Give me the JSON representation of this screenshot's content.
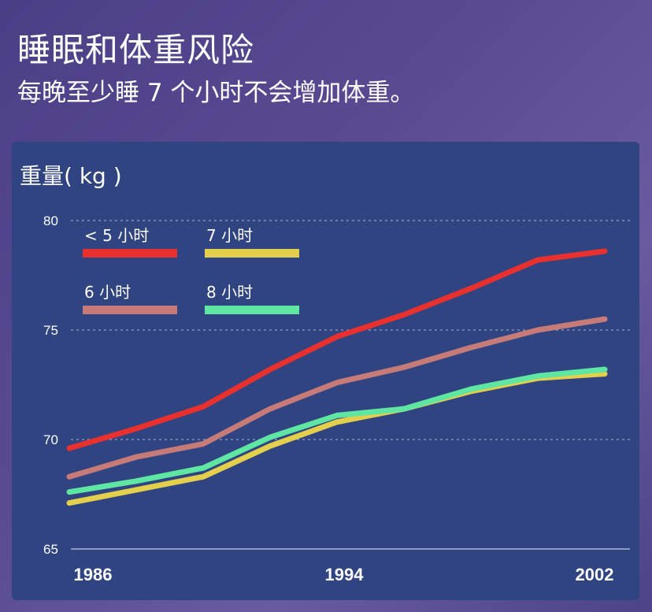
{
  "header": {
    "title": "睡眠和体重风险",
    "subtitle": "每晚至少睡 7 个小时不会增加体重。"
  },
  "chart_data": {
    "type": "line",
    "title": "睡眠和体重风险",
    "ylabel": "重量( kg )",
    "xlabel": "",
    "x": [
      1986,
      1988,
      1990,
      1992,
      1994,
      1996,
      1998,
      2000,
      2002
    ],
    "xticks": [
      "1986",
      "1994",
      "2002"
    ],
    "yticks": [
      "65",
      "70",
      "75",
      "80"
    ],
    "ylim": [
      65,
      80
    ],
    "xlim": [
      1986,
      2002
    ],
    "grid": "horizontal dashed",
    "legend_position": "top-left",
    "series": [
      {
        "name": "< 5 小时",
        "color": "#e8302e",
        "values": [
          69.6,
          70.5,
          71.5,
          73.2,
          74.7,
          75.7,
          76.9,
          78.2,
          78.6
        ]
      },
      {
        "name": "6 小时",
        "color": "#c77b79",
        "values": [
          68.3,
          69.2,
          69.8,
          71.4,
          72.6,
          73.3,
          74.2,
          75.0,
          75.5
        ]
      },
      {
        "name": "7 小时",
        "color": "#e3cf4c",
        "values": [
          67.1,
          67.7,
          68.3,
          69.7,
          70.8,
          71.4,
          72.2,
          72.8,
          73.0
        ]
      },
      {
        "name": "8 小时",
        "color": "#5fe6a2",
        "values": [
          67.6,
          68.1,
          68.7,
          70.1,
          71.1,
          71.4,
          72.3,
          72.9,
          73.2
        ]
      }
    ]
  }
}
